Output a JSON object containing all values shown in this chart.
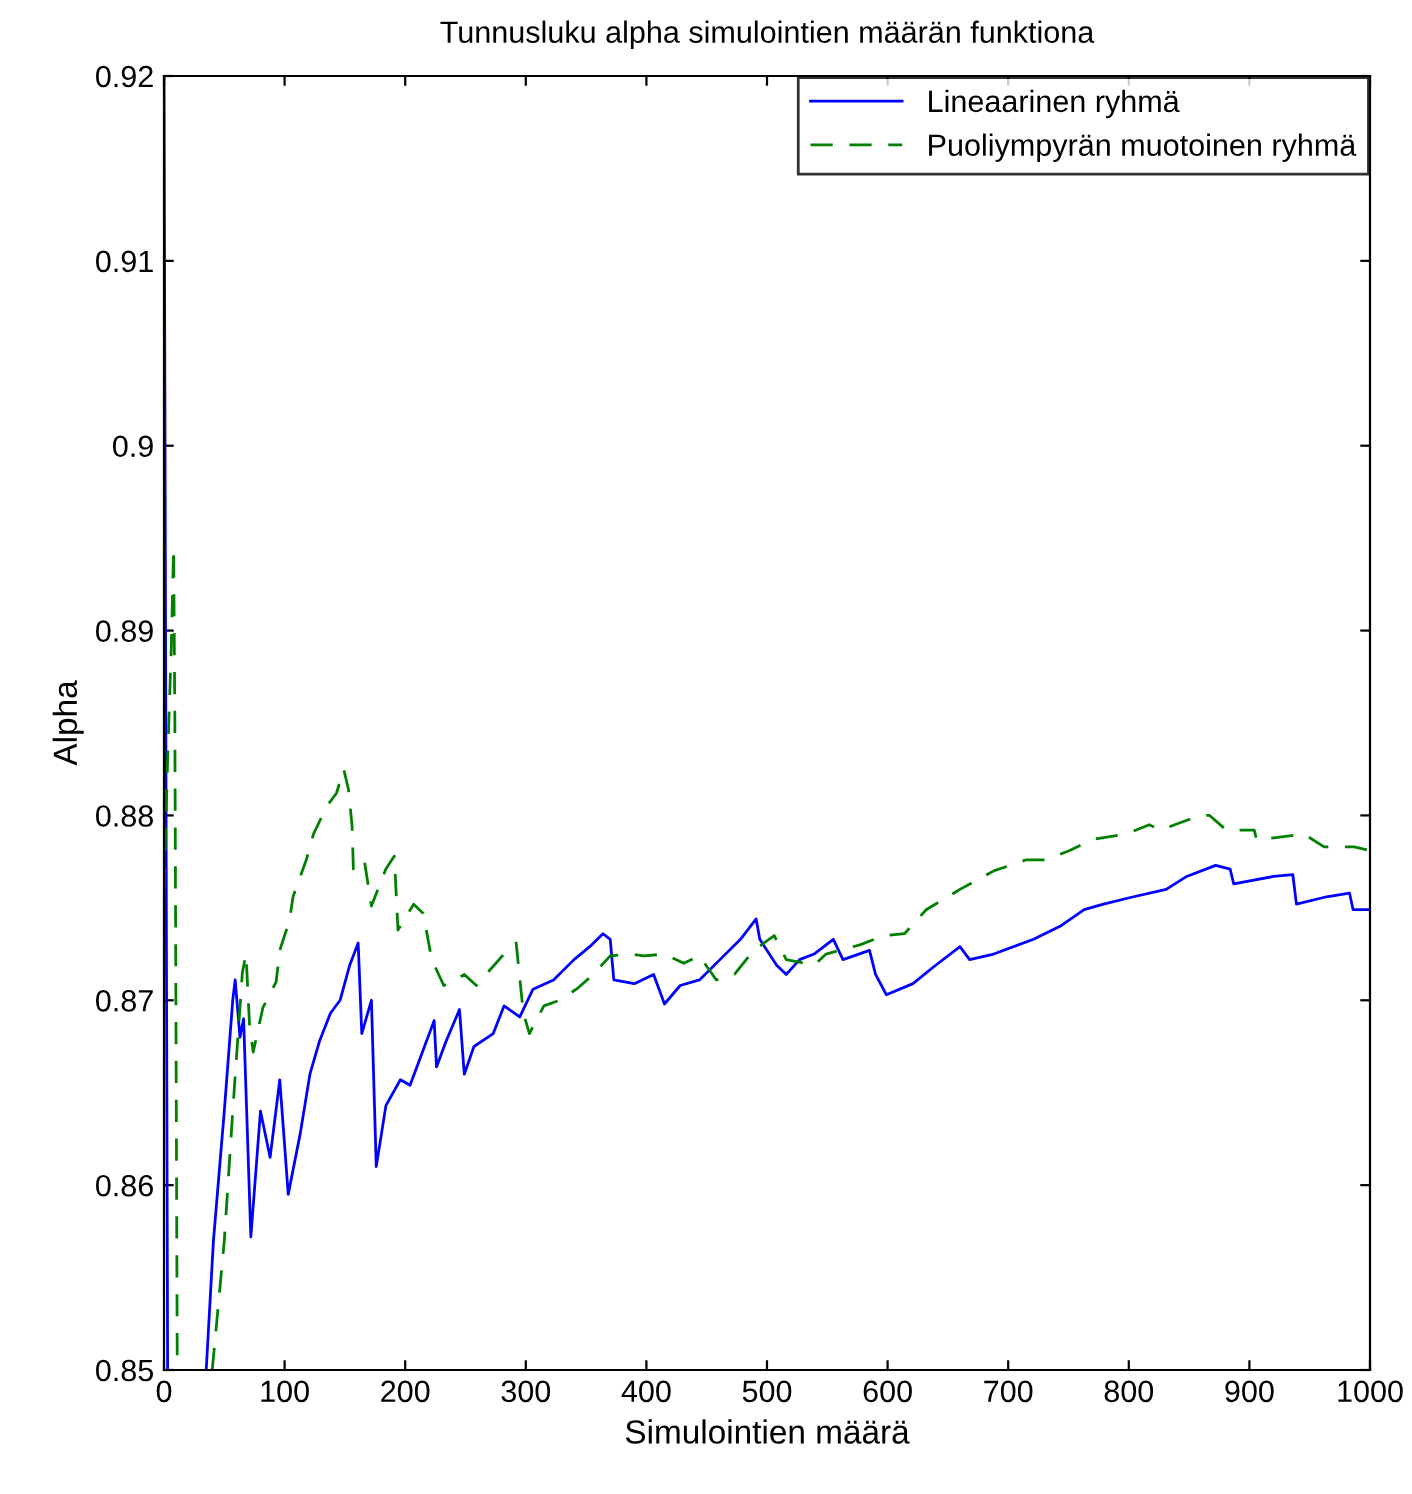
{
  "chart_data": {
    "type": "line",
    "title": "Tunnusluku alpha simulointien määrän funktiona",
    "xlabel": "Simulointien määrä",
    "ylabel": "Alpha",
    "xlim": [
      0,
      1000
    ],
    "ylim": [
      0.85,
      0.92
    ],
    "xticks": [
      0,
      100,
      200,
      300,
      400,
      500,
      600,
      700,
      800,
      900,
      1000
    ],
    "yticks": [
      0.85,
      0.86,
      0.87,
      0.88,
      0.89,
      0.9,
      0.91,
      0.92
    ],
    "grid": false,
    "legend": "top right",
    "series": [
      {
        "name": "Lineaarinen ryhmä",
        "color": "#0000ff",
        "line_style": "solid",
        "x": [
          0,
          3,
          20,
          35,
          41,
          50,
          57,
          59,
          63,
          66,
          72,
          80,
          88,
          96,
          103,
          113,
          121,
          129,
          138,
          146,
          154,
          161,
          164,
          172,
          176,
          184,
          196,
          204,
          212,
          224,
          226,
          234,
          245,
          249,
          257,
          273,
          282,
          295,
          306,
          323,
          340,
          353,
          364,
          370,
          373,
          390,
          406,
          415,
          428,
          444,
          461,
          478,
          491,
          494,
          508,
          516,
          527,
          539,
          555,
          563,
          585,
          590,
          599,
          621,
          638,
          660,
          668,
          688,
          721,
          743,
          763,
          779,
          804,
          831,
          848,
          872,
          884,
          887,
          920,
          936,
          939,
          964,
          983,
          986,
          995,
          1000
        ],
        "values": [
          0.92,
          0.85,
          null,
          0.85,
          0.857,
          0.864,
          0.87,
          0.8711,
          0.868,
          0.869,
          0.8572,
          0.864,
          0.8615,
          0.8657,
          0.8595,
          0.8628,
          0.866,
          0.8678,
          0.8693,
          0.87,
          0.8719,
          0.8731,
          0.8682,
          0.87,
          0.861,
          0.8643,
          0.8657,
          0.8654,
          0.8668,
          0.8689,
          0.8664,
          0.8678,
          0.8695,
          0.866,
          0.8675,
          0.8682,
          0.8697,
          0.8691,
          0.8706,
          0.8711,
          0.8722,
          0.8729,
          0.8736,
          0.8733,
          0.8711,
          0.8709,
          0.8714,
          0.8698,
          0.8708,
          0.8711,
          0.8722,
          0.8733,
          0.8744,
          0.8733,
          0.8719,
          0.8714,
          0.8722,
          0.8725,
          0.8733,
          0.8722,
          0.8727,
          0.8714,
          0.8703,
          0.8709,
          0.8718,
          0.8729,
          0.8722,
          0.8725,
          0.8733,
          0.874,
          0.8749,
          0.8752,
          0.8756,
          0.876,
          0.8767,
          0.8773,
          0.8771,
          0.8763,
          0.8767,
          0.8768,
          0.8752,
          0.8756,
          0.8758,
          0.8749,
          0.8749,
          0.8749
        ]
      },
      {
        "name": "Puoliympyrän muotoinen ryhmä",
        "color": "#008000",
        "line_style": "dashed",
        "x": [
          0,
          3,
          6,
          8,
          9,
          11,
          25,
          40,
          50,
          57,
          65,
          68,
          71,
          74,
          82,
          93,
          96,
          104,
          107,
          118,
          124,
          135,
          143,
          149,
          153,
          156,
          157,
          166,
          172,
          184,
          191,
          194,
          207,
          215,
          222,
          232,
          242,
          249,
          259,
          267,
          282,
          292,
          298,
          303,
          315,
          328,
          342,
          356,
          370,
          386,
          398,
          415,
          431,
          444,
          458,
          473,
          489,
          506,
          516,
          539,
          549,
          577,
          597,
          614,
          632,
          660,
          688,
          715,
          731,
          751,
          770,
          798,
          817,
          826,
          859,
          867,
          881,
          904,
          906,
          922,
          945,
          962,
          987,
          1000
        ],
        "values": [
          0.876,
          0.883,
          0.889,
          0.8945,
          0.885,
          0.85,
          null,
          0.85,
          0.857,
          0.864,
          0.8715,
          0.8725,
          0.8686,
          0.8672,
          0.8696,
          0.871,
          0.8727,
          0.8743,
          0.8756,
          0.8776,
          0.879,
          0.8805,
          0.8812,
          0.8825,
          0.8814,
          0.8794,
          0.8771,
          0.8776,
          0.8751,
          0.8771,
          0.8778,
          0.8738,
          0.8752,
          0.8747,
          0.8722,
          0.8708,
          0.8711,
          0.8714,
          0.8708,
          0.8714,
          0.8725,
          0.8731,
          0.8693,
          0.8682,
          0.8697,
          0.87,
          0.8706,
          0.8714,
          0.8724,
          0.8725,
          0.8724,
          0.8725,
          0.872,
          0.8724,
          0.8711,
          0.8714,
          0.8727,
          0.8735,
          0.8722,
          0.8719,
          0.8725,
          0.873,
          0.8735,
          0.8736,
          0.8749,
          0.876,
          0.877,
          0.8776,
          0.8776,
          0.8781,
          0.8787,
          0.879,
          0.8795,
          0.8792,
          0.88,
          0.88,
          0.8792,
          0.8792,
          0.8787,
          0.8788,
          0.879,
          0.8783,
          0.8783,
          0.8781
        ]
      }
    ]
  }
}
